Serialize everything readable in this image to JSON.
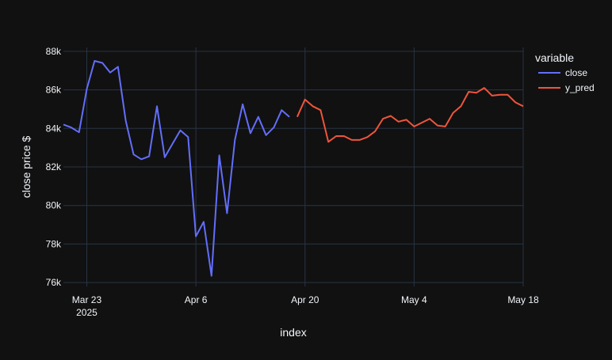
{
  "chart_data": {
    "type": "line",
    "title": "",
    "xlabel": "index",
    "ylabel": "close price $",
    "x_range": [
      "2025-03-20",
      "2025-05-18"
    ],
    "ylim": [
      75800,
      88200
    ],
    "x_ticks": [
      {
        "date": "2025-03-23",
        "label": "Mar 23",
        "sublabel": "2025"
      },
      {
        "date": "2025-04-06",
        "label": "Apr 6",
        "sublabel": ""
      },
      {
        "date": "2025-04-20",
        "label": "Apr 20",
        "sublabel": ""
      },
      {
        "date": "2025-05-04",
        "label": "May 4",
        "sublabel": ""
      },
      {
        "date": "2025-05-18",
        "label": "May 18",
        "sublabel": ""
      }
    ],
    "y_ticks": [
      {
        "value": 76000,
        "label": "76k"
      },
      {
        "value": 78000,
        "label": "78k"
      },
      {
        "value": 80000,
        "label": "80k"
      },
      {
        "value": 82000,
        "label": "82k"
      },
      {
        "value": 84000,
        "label": "84k"
      },
      {
        "value": 86000,
        "label": "86k"
      },
      {
        "value": 88000,
        "label": "88k"
      }
    ],
    "grid": true,
    "legend": {
      "title": "variable",
      "placement": "top-right"
    },
    "series": [
      {
        "name": "close",
        "color": "#636efa",
        "points": [
          [
            "2025-03-20",
            84200
          ],
          [
            "2025-03-21",
            84050
          ],
          [
            "2025-03-22",
            83800
          ],
          [
            "2025-03-23",
            86050
          ],
          [
            "2025-03-24",
            87500
          ],
          [
            "2025-03-25",
            87400
          ],
          [
            "2025-03-26",
            86900
          ],
          [
            "2025-03-27",
            87200
          ],
          [
            "2025-03-28",
            84400
          ],
          [
            "2025-03-29",
            82650
          ],
          [
            "2025-03-30",
            82400
          ],
          [
            "2025-03-31",
            82550
          ],
          [
            "2025-04-01",
            85150
          ],
          [
            "2025-04-02",
            82500
          ],
          [
            "2025-04-03",
            83200
          ],
          [
            "2025-04-04",
            83900
          ],
          [
            "2025-04-05",
            83550
          ],
          [
            "2025-04-06",
            78400
          ],
          [
            "2025-04-07",
            79150
          ],
          [
            "2025-04-08",
            76350
          ],
          [
            "2025-04-09",
            82600
          ],
          [
            "2025-04-10",
            79600
          ],
          [
            "2025-04-11",
            83400
          ],
          [
            "2025-04-12",
            85250
          ],
          [
            "2025-04-13",
            83750
          ],
          [
            "2025-04-14",
            84600
          ],
          [
            "2025-04-15",
            83650
          ],
          [
            "2025-04-16",
            84050
          ],
          [
            "2025-04-17",
            84950
          ],
          [
            "2025-04-18",
            84600
          ]
        ]
      },
      {
        "name": "y_pred",
        "color": "#ef553b",
        "points": [
          [
            "2025-04-19",
            84600
          ],
          [
            "2025-04-20",
            85500
          ],
          [
            "2025-04-21",
            85150
          ],
          [
            "2025-04-22",
            84950
          ],
          [
            "2025-04-23",
            83300
          ],
          [
            "2025-04-24",
            83600
          ],
          [
            "2025-04-25",
            83600
          ],
          [
            "2025-04-26",
            83400
          ],
          [
            "2025-04-27",
            83400
          ],
          [
            "2025-04-28",
            83550
          ],
          [
            "2025-04-29",
            83850
          ],
          [
            "2025-04-30",
            84500
          ],
          [
            "2025-05-01",
            84650
          ],
          [
            "2025-05-02",
            84350
          ],
          [
            "2025-05-03",
            84450
          ],
          [
            "2025-05-04",
            84100
          ],
          [
            "2025-05-05",
            84300
          ],
          [
            "2025-05-06",
            84500
          ],
          [
            "2025-05-07",
            84150
          ],
          [
            "2025-05-08",
            84100
          ],
          [
            "2025-05-09",
            84800
          ],
          [
            "2025-05-10",
            85150
          ],
          [
            "2025-05-11",
            85900
          ],
          [
            "2025-05-12",
            85850
          ],
          [
            "2025-05-13",
            86100
          ],
          [
            "2025-05-14",
            85700
          ],
          [
            "2025-05-15",
            85750
          ],
          [
            "2025-05-16",
            85750
          ],
          [
            "2025-05-17",
            85350
          ],
          [
            "2025-05-18",
            85150
          ]
        ]
      }
    ]
  }
}
